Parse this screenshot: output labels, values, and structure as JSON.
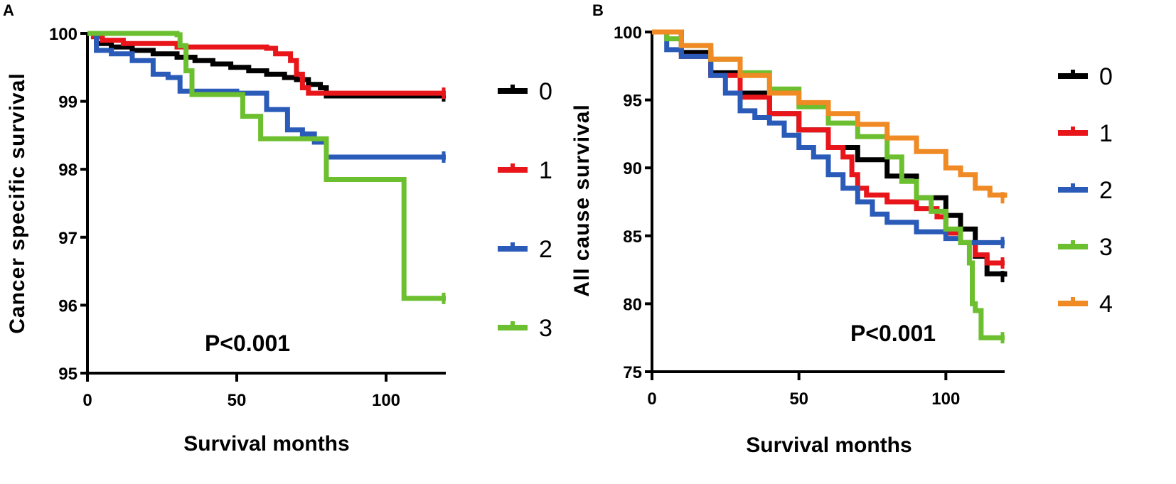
{
  "chart_data": [
    {
      "type": "line",
      "subtype": "kaplan-meier-step",
      "panel": "A",
      "title": "",
      "xlabel": "Survival months",
      "ylabel": "Cancer specific survival",
      "xlim": [
        0,
        120
      ],
      "ylim": [
        95,
        100
      ],
      "xticks": [
        0,
        50,
        100
      ],
      "yticks": [
        95,
        96,
        97,
        98,
        99,
        100
      ],
      "annotation": "P<0.001",
      "legend_position": "right",
      "series": [
        {
          "name": "0",
          "color": "#000000",
          "points": [
            [
              0,
              100
            ],
            [
              3,
              99.85
            ],
            [
              8,
              99.8
            ],
            [
              15,
              99.75
            ],
            [
              22,
              99.7
            ],
            [
              30,
              99.65
            ],
            [
              36,
              99.6
            ],
            [
              42,
              99.55
            ],
            [
              48,
              99.5
            ],
            [
              54,
              99.45
            ],
            [
              60,
              99.4
            ],
            [
              66,
              99.35
            ],
            [
              70,
              99.32
            ],
            [
              74,
              99.25
            ],
            [
              78,
              99.2
            ],
            [
              80,
              99.08
            ],
            [
              120,
              99.08
            ]
          ]
        },
        {
          "name": "1",
          "color": "#e8161b",
          "points": [
            [
              0,
              100
            ],
            [
              2,
              99.95
            ],
            [
              5,
              99.9
            ],
            [
              12,
              99.85
            ],
            [
              30,
              99.8
            ],
            [
              60,
              99.78
            ],
            [
              63,
              99.7
            ],
            [
              68,
              99.6
            ],
            [
              70,
              99.4
            ],
            [
              72,
              99.2
            ],
            [
              74,
              99.12
            ],
            [
              120,
              99.12
            ]
          ]
        },
        {
          "name": "2",
          "color": "#2a5bb8",
          "points": [
            [
              0,
              100
            ],
            [
              3,
              99.75
            ],
            [
              8,
              99.7
            ],
            [
              15,
              99.6
            ],
            [
              22,
              99.4
            ],
            [
              27,
              99.35
            ],
            [
              31,
              99.15
            ],
            [
              50,
              99.12
            ],
            [
              60,
              98.88
            ],
            [
              67,
              98.58
            ],
            [
              72,
              98.52
            ],
            [
              76,
              98.4
            ],
            [
              80,
              98.18
            ],
            [
              120,
              98.18
            ]
          ]
        },
        {
          "name": "3",
          "color": "#6cbf2e",
          "points": [
            [
              0,
              100
            ],
            [
              30,
              99.98
            ],
            [
              31,
              99.82
            ],
            [
              33,
              99.45
            ],
            [
              35,
              99.1
            ],
            [
              40,
              99.1
            ],
            [
              52,
              98.78
            ],
            [
              58,
              98.45
            ],
            [
              70,
              98.45
            ],
            [
              80,
              97.85
            ],
            [
              104,
              97.85
            ],
            [
              106,
              96.1
            ],
            [
              120,
              96.1
            ]
          ]
        }
      ]
    },
    {
      "type": "line",
      "subtype": "kaplan-meier-step",
      "panel": "B",
      "title": "",
      "xlabel": "Survival months",
      "ylabel": "All cause survival",
      "xlim": [
        0,
        120
      ],
      "ylim": [
        75,
        100
      ],
      "xticks": [
        0,
        50,
        100
      ],
      "yticks": [
        75,
        80,
        85,
        90,
        95,
        100
      ],
      "annotation": "P<0.001",
      "legend_position": "right",
      "series": [
        {
          "name": "0",
          "color": "#000000",
          "points": [
            [
              0,
              100
            ],
            [
              10,
              98.5
            ],
            [
              20,
              97
            ],
            [
              30,
              95.5
            ],
            [
              40,
              94
            ],
            [
              50,
              92.8
            ],
            [
              60,
              91.5
            ],
            [
              70,
              90.6
            ],
            [
              80,
              89.4
            ],
            [
              90,
              87.8
            ],
            [
              100,
              86.5
            ],
            [
              105,
              85.5
            ],
            [
              110,
              83.5
            ],
            [
              114,
              82.2
            ],
            [
              120,
              82.0
            ]
          ]
        },
        {
          "name": "1",
          "color": "#e8161b",
          "points": [
            [
              0,
              100
            ],
            [
              10,
              98.2
            ],
            [
              20,
              96.8
            ],
            [
              30,
              95.2
            ],
            [
              40,
              94
            ],
            [
              50,
              92.8
            ],
            [
              60,
              91.5
            ],
            [
              65,
              90.8
            ],
            [
              68,
              89.5
            ],
            [
              70,
              88.5
            ],
            [
              73,
              88
            ],
            [
              80,
              87.5
            ],
            [
              90,
              87
            ],
            [
              97,
              86.4
            ],
            [
              100,
              85.2
            ],
            [
              105,
              84.5
            ],
            [
              110,
              83.6
            ],
            [
              114,
              83
            ],
            [
              120,
              83
            ]
          ]
        },
        {
          "name": "2",
          "color": "#2a5bb8",
          "points": [
            [
              0,
              100
            ],
            [
              5,
              98.7
            ],
            [
              10,
              98.2
            ],
            [
              20,
              96.8
            ],
            [
              25,
              95.5
            ],
            [
              30,
              94.2
            ],
            [
              35,
              93.7
            ],
            [
              40,
              93.3
            ],
            [
              45,
              92.4
            ],
            [
              50,
              91.5
            ],
            [
              55,
              90.8
            ],
            [
              60,
              89.5
            ],
            [
              65,
              88.5
            ],
            [
              70,
              87.5
            ],
            [
              75,
              86.6
            ],
            [
              80,
              86
            ],
            [
              90,
              85.3
            ],
            [
              100,
              84.8
            ],
            [
              105,
              84.5
            ],
            [
              120,
              84.5
            ]
          ]
        },
        {
          "name": "3",
          "color": "#6cbf2e",
          "points": [
            [
              0,
              100
            ],
            [
              5,
              99.5
            ],
            [
              10,
              99
            ],
            [
              20,
              98
            ],
            [
              30,
              97
            ],
            [
              40,
              95.8
            ],
            [
              50,
              94.5
            ],
            [
              60,
              93.3
            ],
            [
              70,
              92.3
            ],
            [
              80,
              90.8
            ],
            [
              85,
              89
            ],
            [
              90,
              87.8
            ],
            [
              95,
              86.8
            ],
            [
              100,
              85.5
            ],
            [
              105,
              84.5
            ],
            [
              108,
              83
            ],
            [
              109,
              80
            ],
            [
              110,
              79.5
            ],
            [
              112,
              77.5
            ],
            [
              120,
              77.5
            ]
          ]
        },
        {
          "name": "4",
          "color": "#f08a24",
          "points": [
            [
              0,
              100
            ],
            [
              10,
              99
            ],
            [
              20,
              98
            ],
            [
              30,
              96.8
            ],
            [
              40,
              95.5
            ],
            [
              50,
              94.8
            ],
            [
              60,
              94
            ],
            [
              70,
              93.2
            ],
            [
              80,
              92.2
            ],
            [
              90,
              91.2
            ],
            [
              100,
              90
            ],
            [
              105,
              89.5
            ],
            [
              110,
              88.5
            ],
            [
              115,
              88
            ],
            [
              120,
              87.8
            ]
          ]
        }
      ]
    }
  ]
}
